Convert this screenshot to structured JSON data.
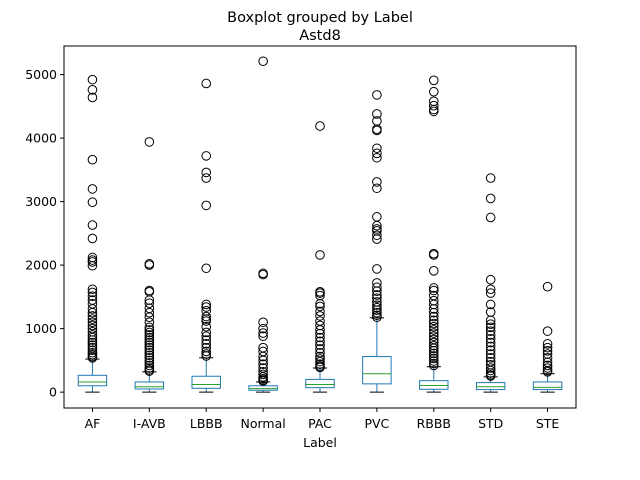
{
  "chart_data": {
    "type": "boxplot",
    "title": "Boxplot grouped by Label",
    "subtitle": "Astd8",
    "xlabel": "Label",
    "ylabel": "",
    "ylim": [
      -250,
      5450
    ],
    "yticks": [
      0,
      1000,
      2000,
      3000,
      4000,
      5000
    ],
    "grid": false,
    "colors": {
      "box": "#1f77b4",
      "median": "#2ca02c",
      "whisker": "#1f77b4",
      "cap": "#000000",
      "flier": "#000000"
    },
    "categories": [
      "AF",
      "I-AVB",
      "LBBB",
      "Normal",
      "PAC",
      "PVC",
      "RBBB",
      "STD",
      "STE"
    ],
    "boxes": [
      {
        "label": "AF",
        "whislo": 0,
        "q1": 100,
        "med": 160,
        "q3": 265,
        "whishi": 520,
        "fliers": [
          4920,
          4760,
          4640,
          3660,
          3200,
          2990,
          2630,
          2420,
          2120,
          2080,
          2050,
          1990,
          1620,
          1570,
          1510,
          1450,
          1390,
          1310,
          1250,
          1200,
          1150,
          1100,
          1050,
          1000,
          950,
          900,
          860,
          820,
          780,
          740,
          700,
          660,
          620,
          590,
          560,
          540
        ]
      },
      {
        "label": "I-AVB",
        "whislo": 0,
        "q1": 50,
        "med": 85,
        "q3": 160,
        "whishi": 320,
        "fliers": [
          3940,
          2020,
          2000,
          1600,
          1580,
          1450,
          1400,
          1320,
          1250,
          1180,
          1100,
          1020,
          980,
          940,
          900,
          860,
          820,
          780,
          740,
          700,
          660,
          620,
          580,
          540,
          500,
          460,
          420,
          380,
          350,
          330
        ]
      },
      {
        "label": "LBBB",
        "whislo": 0,
        "q1": 60,
        "med": 120,
        "q3": 250,
        "whishi": 540,
        "fliers": [
          4860,
          3720,
          3460,
          3370,
          2940,
          1950,
          1380,
          1340,
          1280,
          1190,
          1150,
          1120,
          1030,
          940,
          880,
          820,
          760,
          700,
          640,
          600,
          570
        ]
      },
      {
        "label": "Normal",
        "whislo": 0,
        "q1": 30,
        "med": 55,
        "q3": 100,
        "whishi": 160,
        "fliers": [
          5210,
          1870,
          1850,
          1100,
          1000,
          930,
          880,
          700,
          640,
          560,
          500,
          440,
          380,
          320,
          280,
          240,
          210,
          190,
          175
        ]
      },
      {
        "label": "PAC",
        "whislo": 0,
        "q1": 70,
        "med": 120,
        "q3": 200,
        "whishi": 380,
        "fliers": [
          4190,
          2160,
          1580,
          1560,
          1520,
          1390,
          1350,
          1270,
          1200,
          1120,
          1050,
          980,
          920,
          860,
          800,
          740,
          680,
          620,
          560,
          520,
          480,
          440,
          410,
          390
        ]
      },
      {
        "label": "PVC",
        "whislo": 0,
        "q1": 130,
        "med": 290,
        "q3": 560,
        "whishi": 1170,
        "fliers": [
          4680,
          4380,
          4270,
          4140,
          4120,
          3840,
          3760,
          3690,
          3310,
          3210,
          2760,
          2620,
          2570,
          2540,
          2470,
          2410,
          1940,
          1720,
          1650,
          1590,
          1530,
          1480,
          1420,
          1370,
          1330,
          1290,
          1250,
          1210,
          1180
        ]
      },
      {
        "label": "RBBB",
        "whislo": 0,
        "q1": 45,
        "med": 105,
        "q3": 180,
        "whishi": 400,
        "fliers": [
          4910,
          4730,
          4580,
          4510,
          4450,
          4420,
          2180,
          2160,
          1910,
          1640,
          1600,
          1520,
          1440,
          1380,
          1310,
          1250,
          1190,
          1130,
          1080,
          1030,
          980,
          930,
          880,
          830,
          780,
          730,
          690,
          650,
          610,
          570,
          530,
          490,
          450,
          420
        ]
      },
      {
        "label": "STD",
        "whislo": 0,
        "q1": 40,
        "med": 85,
        "q3": 150,
        "whishi": 240,
        "fliers": [
          3370,
          3050,
          2750,
          1770,
          1620,
          1560,
          1380,
          1260,
          1130,
          1070,
          1020,
          960,
          900,
          840,
          780,
          720,
          660,
          600,
          540,
          480,
          430,
          380,
          340,
          300,
          270,
          255
        ]
      },
      {
        "label": "STE",
        "whislo": 0,
        "q1": 40,
        "med": 75,
        "q3": 160,
        "whishi": 290,
        "fliers": [
          1660,
          960,
          760,
          700,
          650,
          600,
          540,
          470,
          420,
          380,
          340,
          320
        ]
      }
    ]
  }
}
